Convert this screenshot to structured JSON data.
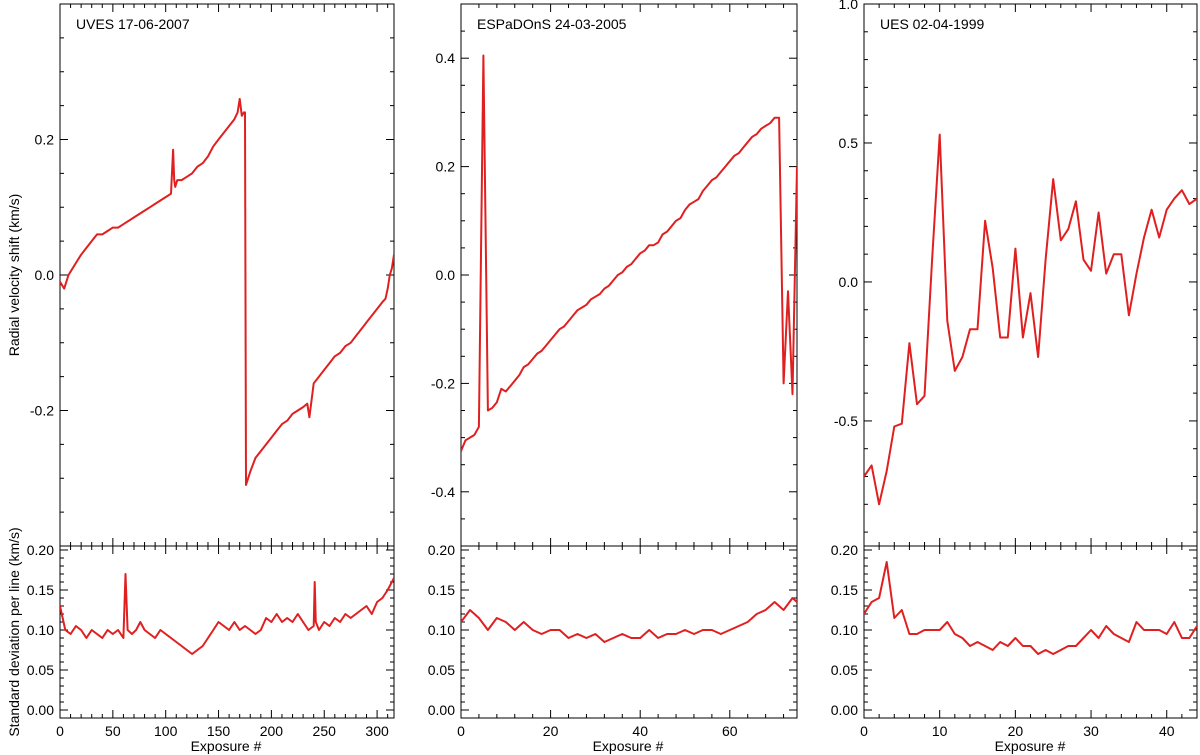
{
  "colors": {
    "line": "#e02020",
    "axis": "#000000",
    "background": "#ffffff"
  },
  "labels": {
    "ylabel_top": "Radial velocity shift (km/s)",
    "ylabel_bottom": "Standard deviation per line (km/s)",
    "xlabel": "Exposure #"
  },
  "chart_data": [
    {
      "type": "line",
      "title": "UVES 17-06-2007",
      "xlabel": "Exposure #",
      "ylabel": "Radial velocity shift (km/s)",
      "xlim": [
        0,
        316
      ],
      "ylim": [
        -0.4,
        0.4
      ],
      "xticks": [
        0,
        50,
        100,
        150,
        200,
        250,
        300
      ],
      "yticks": [
        -0.2,
        0.0,
        0.2
      ],
      "ytick_labels": [
        "-0.2",
        "0.0",
        "0.2"
      ],
      "grid": false,
      "x": [
        0,
        4,
        8,
        12,
        16,
        20,
        25,
        30,
        35,
        40,
        45,
        50,
        55,
        60,
        65,
        70,
        75,
        80,
        85,
        90,
        95,
        100,
        105,
        107,
        108,
        109,
        111,
        115,
        120,
        125,
        130,
        135,
        140,
        145,
        150,
        155,
        160,
        165,
        168,
        170,
        172,
        174,
        175,
        176,
        180,
        185,
        190,
        195,
        200,
        205,
        210,
        215,
        220,
        225,
        230,
        234,
        236,
        240,
        245,
        250,
        255,
        260,
        265,
        270,
        275,
        280,
        285,
        290,
        295,
        300,
        305,
        308,
        310,
        312,
        314,
        316
      ],
      "y": [
        -0.01,
        -0.02,
        0.0,
        0.01,
        0.02,
        0.03,
        0.04,
        0.05,
        0.06,
        0.06,
        0.065,
        0.07,
        0.07,
        0.075,
        0.08,
        0.085,
        0.09,
        0.095,
        0.1,
        0.105,
        0.11,
        0.115,
        0.12,
        0.185,
        0.14,
        0.13,
        0.14,
        0.14,
        0.145,
        0.15,
        0.16,
        0.165,
        0.175,
        0.19,
        0.2,
        0.21,
        0.22,
        0.23,
        0.24,
        0.26,
        0.235,
        0.24,
        0.24,
        -0.31,
        -0.29,
        -0.27,
        -0.26,
        -0.25,
        -0.24,
        -0.23,
        -0.22,
        -0.215,
        -0.205,
        -0.2,
        -0.195,
        -0.19,
        -0.21,
        -0.16,
        -0.15,
        -0.14,
        -0.13,
        -0.12,
        -0.115,
        -0.105,
        -0.1,
        -0.09,
        -0.08,
        -0.07,
        -0.06,
        -0.05,
        -0.04,
        -0.035,
        -0.02,
        0.0,
        0.01,
        0.03
      ]
    },
    {
      "type": "line",
      "xlabel": "Exposure #",
      "ylabel": "Standard deviation per line (km/s)",
      "xlim": [
        0,
        316
      ],
      "ylim": [
        -0.01,
        0.205
      ],
      "xticks": [
        0,
        50,
        100,
        150,
        200,
        250,
        300
      ],
      "yticks": [
        0.0,
        0.05,
        0.1,
        0.15,
        0.2
      ],
      "ytick_labels": [
        "0.00",
        "0.05",
        "0.10",
        "0.15",
        "0.20"
      ],
      "grid": false,
      "x": [
        0,
        5,
        10,
        15,
        20,
        25,
        30,
        35,
        40,
        45,
        50,
        55,
        60,
        62,
        64,
        68,
        72,
        76,
        80,
        85,
        90,
        95,
        100,
        105,
        110,
        115,
        120,
        125,
        130,
        135,
        140,
        145,
        150,
        155,
        160,
        165,
        170,
        175,
        180,
        185,
        190,
        195,
        200,
        205,
        210,
        215,
        220,
        225,
        230,
        235,
        240,
        241,
        242,
        245,
        250,
        255,
        260,
        265,
        270,
        275,
        280,
        285,
        290,
        295,
        300,
        305,
        310,
        316
      ],
      "y": [
        0.13,
        0.1,
        0.095,
        0.105,
        0.1,
        0.09,
        0.1,
        0.095,
        0.09,
        0.1,
        0.095,
        0.1,
        0.09,
        0.17,
        0.1,
        0.095,
        0.1,
        0.11,
        0.1,
        0.095,
        0.09,
        0.1,
        0.095,
        0.09,
        0.085,
        0.08,
        0.075,
        0.07,
        0.075,
        0.08,
        0.09,
        0.1,
        0.11,
        0.105,
        0.1,
        0.11,
        0.1,
        0.105,
        0.1,
        0.095,
        0.1,
        0.115,
        0.11,
        0.12,
        0.11,
        0.115,
        0.11,
        0.12,
        0.11,
        0.1,
        0.105,
        0.16,
        0.11,
        0.1,
        0.11,
        0.105,
        0.115,
        0.11,
        0.12,
        0.115,
        0.12,
        0.125,
        0.13,
        0.12,
        0.135,
        0.14,
        0.15,
        0.165
      ]
    },
    {
      "type": "line",
      "title": "ESPaDOnS 24-03-2005",
      "xlabel": "Exposure #",
      "ylabel": "Radial velocity shift (km/s)",
      "xlim": [
        0,
        75
      ],
      "ylim": [
        -0.5,
        0.5
      ],
      "xticks": [
        0,
        20,
        40,
        60
      ],
      "yticks": [
        -0.4,
        -0.2,
        0.0,
        0.2,
        0.4
      ],
      "ytick_labels": [
        "-0.4",
        "-0.2",
        "0.0",
        "0.2",
        "0.4"
      ],
      "grid": false,
      "x": [
        0,
        1,
        2,
        3,
        4,
        5,
        6,
        7,
        8,
        9,
        10,
        11,
        12,
        13,
        14,
        15,
        16,
        17,
        18,
        19,
        20,
        21,
        22,
        23,
        24,
        25,
        26,
        27,
        28,
        29,
        30,
        31,
        32,
        33,
        34,
        35,
        36,
        37,
        38,
        39,
        40,
        41,
        42,
        43,
        44,
        45,
        46,
        47,
        48,
        49,
        50,
        51,
        52,
        53,
        54,
        55,
        56,
        57,
        58,
        59,
        60,
        61,
        62,
        63,
        64,
        65,
        66,
        67,
        68,
        69,
        70,
        71,
        72,
        73,
        74,
        75
      ],
      "y": [
        -0.325,
        -0.305,
        -0.3,
        -0.295,
        -0.28,
        0.405,
        -0.25,
        -0.245,
        -0.235,
        -0.21,
        -0.215,
        -0.205,
        -0.195,
        -0.185,
        -0.17,
        -0.165,
        -0.155,
        -0.145,
        -0.14,
        -0.13,
        -0.12,
        -0.11,
        -0.1,
        -0.095,
        -0.085,
        -0.075,
        -0.065,
        -0.06,
        -0.055,
        -0.045,
        -0.04,
        -0.035,
        -0.025,
        -0.02,
        -0.01,
        0.0,
        0.005,
        0.015,
        0.02,
        0.03,
        0.04,
        0.045,
        0.055,
        0.055,
        0.06,
        0.075,
        0.08,
        0.09,
        0.1,
        0.105,
        0.12,
        0.13,
        0.135,
        0.14,
        0.155,
        0.165,
        0.175,
        0.18,
        0.19,
        0.2,
        0.21,
        0.22,
        0.225,
        0.235,
        0.245,
        0.255,
        0.26,
        0.27,
        0.275,
        0.28,
        0.29,
        0.29,
        -0.2,
        -0.03,
        -0.22,
        0.2
      ]
    },
    {
      "type": "line",
      "xlabel": "Exposure #",
      "ylabel": "Standard deviation per line (km/s)",
      "xlim": [
        0,
        75
      ],
      "ylim": [
        -0.01,
        0.205
      ],
      "xticks": [
        0,
        20,
        40,
        60
      ],
      "yticks": [
        0.0,
        0.05,
        0.1,
        0.15,
        0.2
      ],
      "ytick_labels": [
        "0.00",
        "0.05",
        "0.10",
        "0.15",
        "0.20"
      ],
      "grid": false,
      "x": [
        0,
        2,
        4,
        6,
        8,
        10,
        12,
        14,
        16,
        18,
        20,
        22,
        24,
        26,
        28,
        30,
        32,
        34,
        36,
        38,
        40,
        42,
        44,
        46,
        48,
        50,
        52,
        54,
        56,
        58,
        60,
        62,
        64,
        66,
        68,
        70,
        72,
        74,
        75
      ],
      "y": [
        0.11,
        0.125,
        0.115,
        0.1,
        0.115,
        0.11,
        0.1,
        0.11,
        0.1,
        0.095,
        0.1,
        0.1,
        0.09,
        0.095,
        0.09,
        0.095,
        0.085,
        0.09,
        0.095,
        0.09,
        0.09,
        0.1,
        0.09,
        0.095,
        0.095,
        0.1,
        0.095,
        0.1,
        0.1,
        0.095,
        0.1,
        0.105,
        0.11,
        0.12,
        0.125,
        0.135,
        0.125,
        0.14,
        0.135
      ]
    },
    {
      "type": "line",
      "title": "UES 02-04-1999",
      "xlabel": "Exposure #",
      "ylabel": "Radial velocity shift (km/s)",
      "xlim": [
        0,
        44
      ],
      "ylim": [
        -0.95,
        1.0
      ],
      "xticks": [
        0,
        10,
        20,
        30,
        40
      ],
      "yticks": [
        -0.5,
        0.0,
        0.5,
        1.0
      ],
      "ytick_labels": [
        "-0.5",
        "0.0",
        "0.5",
        "1.0"
      ],
      "grid": false,
      "x": [
        0,
        1,
        2,
        3,
        4,
        5,
        6,
        7,
        8,
        9,
        10,
        11,
        12,
        13,
        14,
        15,
        16,
        17,
        18,
        19,
        20,
        21,
        22,
        23,
        24,
        25,
        26,
        27,
        28,
        29,
        30,
        31,
        32,
        33,
        34,
        35,
        36,
        37,
        38,
        39,
        40,
        41,
        42,
        43,
        44
      ],
      "y": [
        -0.7,
        -0.66,
        -0.8,
        -0.68,
        -0.52,
        -0.51,
        -0.22,
        -0.44,
        -0.41,
        0.08,
        0.53,
        -0.14,
        -0.32,
        -0.27,
        -0.17,
        -0.17,
        0.22,
        0.05,
        -0.2,
        -0.2,
        0.12,
        -0.2,
        -0.04,
        -0.27,
        0.08,
        0.37,
        0.15,
        0.19,
        0.29,
        0.08,
        0.04,
        0.25,
        0.03,
        0.1,
        0.1,
        -0.12,
        0.03,
        0.16,
        0.26,
        0.16,
        0.26,
        0.3,
        0.33,
        0.28,
        0.3
      ]
    },
    {
      "type": "line",
      "xlabel": "Exposure #",
      "ylabel": "Standard deviation per line (km/s)",
      "xlim": [
        0,
        44
      ],
      "ylim": [
        -0.01,
        0.205
      ],
      "xticks": [
        0,
        10,
        20,
        30,
        40
      ],
      "yticks": [
        0.0,
        0.05,
        0.1,
        0.15,
        0.2
      ],
      "ytick_labels": [
        "0.00",
        "0.05",
        "0.10",
        "0.15",
        "0.20"
      ],
      "grid": false,
      "x": [
        0,
        1,
        2,
        3,
        4,
        5,
        6,
        7,
        8,
        9,
        10,
        11,
        12,
        13,
        14,
        15,
        16,
        17,
        18,
        19,
        20,
        21,
        22,
        23,
        24,
        25,
        26,
        27,
        28,
        29,
        30,
        31,
        32,
        33,
        34,
        35,
        36,
        37,
        38,
        39,
        40,
        41,
        42,
        43,
        44
      ],
      "y": [
        0.12,
        0.135,
        0.14,
        0.185,
        0.115,
        0.125,
        0.095,
        0.095,
        0.1,
        0.1,
        0.1,
        0.11,
        0.095,
        0.09,
        0.08,
        0.085,
        0.08,
        0.075,
        0.085,
        0.08,
        0.09,
        0.08,
        0.08,
        0.07,
        0.075,
        0.07,
        0.075,
        0.08,
        0.08,
        0.09,
        0.1,
        0.09,
        0.105,
        0.095,
        0.09,
        0.085,
        0.11,
        0.1,
        0.1,
        0.1,
        0.095,
        0.11,
        0.09,
        0.09,
        0.105
      ]
    }
  ]
}
